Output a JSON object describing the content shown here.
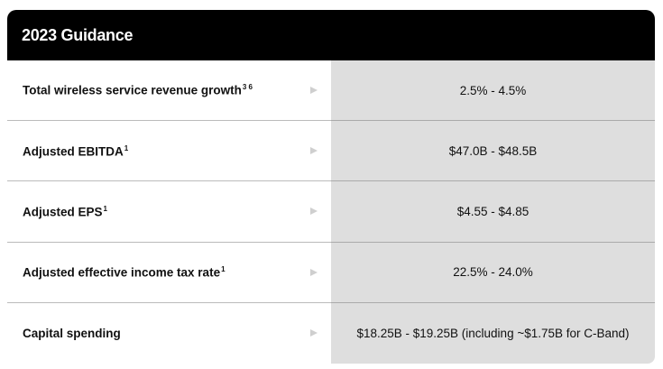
{
  "header": {
    "title": "2023 Guidance"
  },
  "table": {
    "rows": [
      {
        "label": "Total wireless service revenue growth",
        "note": "3 6",
        "value": "2.5% - 4.5%"
      },
      {
        "label": "Adjusted EBITDA",
        "note": "1",
        "value": "$47.0B - $48.5B"
      },
      {
        "label": "Adjusted EPS",
        "note": "1",
        "value": "$4.55 - $4.85"
      },
      {
        "label": "Adjusted effective income tax rate",
        "note": "1",
        "value": "22.5% - 24.0%"
      },
      {
        "label": "Capital spending",
        "value": "$18.25B - $19.25B (including ~$1.75B for C-Band)"
      }
    ]
  }
}
